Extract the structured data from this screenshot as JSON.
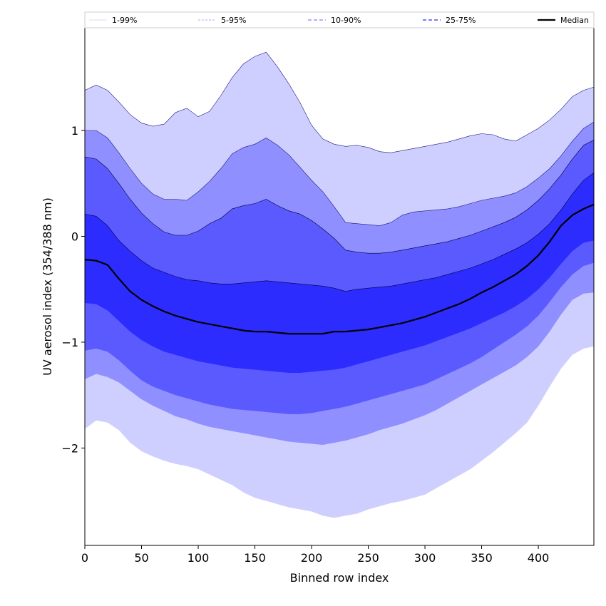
{
  "chart_data": {
    "type": "area",
    "xlabel": "Binned row index",
    "ylabel": "UV aerosol index (354/388 nm)",
    "xlim": [
      0,
      449
    ],
    "ylim": [
      -2.92,
      1.97
    ],
    "xticks": [
      0,
      50,
      100,
      150,
      200,
      250,
      300,
      350,
      400
    ],
    "yticks": [
      -2,
      -1,
      0,
      1
    ],
    "ytick_labels": [
      "−2",
      "−1",
      "0",
      "1"
    ],
    "legend_position": "top, horizontal strip",
    "x": [
      0,
      10,
      20,
      30,
      40,
      50,
      60,
      70,
      80,
      90,
      100,
      110,
      120,
      130,
      140,
      150,
      160,
      170,
      180,
      190,
      200,
      210,
      220,
      230,
      240,
      250,
      260,
      270,
      280,
      290,
      300,
      310,
      320,
      330,
      340,
      350,
      360,
      370,
      380,
      390,
      400,
      410,
      420,
      430,
      440,
      449
    ],
    "series": [
      {
        "name": "1-99%",
        "color": "#cfcfff",
        "lower": [
          -1.82,
          -1.74,
          -1.76,
          -1.83,
          -1.95,
          -2.03,
          -2.08,
          -2.12,
          -2.15,
          -2.17,
          -2.2,
          -2.25,
          -2.3,
          -2.35,
          -2.42,
          -2.47,
          -2.5,
          -2.53,
          -2.56,
          -2.58,
          -2.6,
          -2.64,
          -2.66,
          -2.64,
          -2.62,
          -2.58,
          -2.55,
          -2.52,
          -2.5,
          -2.47,
          -2.44,
          -2.38,
          -2.32,
          -2.26,
          -2.2,
          -2.12,
          -2.04,
          -1.95,
          -1.86,
          -1.76,
          -1.6,
          -1.42,
          -1.25,
          -1.12,
          -1.06,
          -1.04
        ],
        "upper": [
          1.38,
          1.43,
          1.38,
          1.27,
          1.15,
          1.07,
          1.04,
          1.06,
          1.17,
          1.21,
          1.13,
          1.18,
          1.33,
          1.5,
          1.63,
          1.7,
          1.74,
          1.6,
          1.44,
          1.26,
          1.05,
          0.92,
          0.87,
          0.85,
          0.86,
          0.84,
          0.8,
          0.79,
          0.81,
          0.83,
          0.85,
          0.87,
          0.89,
          0.92,
          0.95,
          0.97,
          0.96,
          0.92,
          0.9,
          0.96,
          1.02,
          1.1,
          1.2,
          1.32,
          1.38,
          1.41
        ]
      },
      {
        "name": "5-95%",
        "color": "#8f8fff",
        "lower": [
          -1.35,
          -1.3,
          -1.33,
          -1.38,
          -1.46,
          -1.54,
          -1.6,
          -1.65,
          -1.7,
          -1.73,
          -1.77,
          -1.8,
          -1.82,
          -1.84,
          -1.86,
          -1.88,
          -1.9,
          -1.92,
          -1.94,
          -1.95,
          -1.96,
          -1.97,
          -1.95,
          -1.93,
          -1.9,
          -1.87,
          -1.83,
          -1.8,
          -1.77,
          -1.73,
          -1.69,
          -1.64,
          -1.58,
          -1.52,
          -1.46,
          -1.4,
          -1.34,
          -1.28,
          -1.22,
          -1.14,
          -1.04,
          -0.9,
          -0.74,
          -0.6,
          -0.54,
          -0.53
        ],
        "upper": [
          1.0,
          1.0,
          0.93,
          0.79,
          0.64,
          0.5,
          0.4,
          0.35,
          0.35,
          0.34,
          0.42,
          0.52,
          0.64,
          0.78,
          0.84,
          0.87,
          0.93,
          0.86,
          0.77,
          0.65,
          0.53,
          0.42,
          0.28,
          0.13,
          0.12,
          0.11,
          0.1,
          0.13,
          0.2,
          0.23,
          0.24,
          0.25,
          0.26,
          0.28,
          0.31,
          0.34,
          0.36,
          0.38,
          0.41,
          0.47,
          0.55,
          0.64,
          0.76,
          0.9,
          1.02,
          1.08
        ]
      },
      {
        "name": "10-90%",
        "color": "#5a5aff",
        "lower": [
          -1.08,
          -1.06,
          -1.09,
          -1.17,
          -1.27,
          -1.36,
          -1.42,
          -1.46,
          -1.5,
          -1.53,
          -1.56,
          -1.59,
          -1.61,
          -1.63,
          -1.64,
          -1.65,
          -1.66,
          -1.67,
          -1.68,
          -1.68,
          -1.67,
          -1.65,
          -1.63,
          -1.61,
          -1.58,
          -1.55,
          -1.52,
          -1.49,
          -1.46,
          -1.43,
          -1.4,
          -1.35,
          -1.3,
          -1.25,
          -1.2,
          -1.14,
          -1.07,
          -1.0,
          -0.93,
          -0.85,
          -0.75,
          -0.62,
          -0.48,
          -0.36,
          -0.28,
          -0.25
        ],
        "upper": [
          0.75,
          0.73,
          0.64,
          0.5,
          0.35,
          0.22,
          0.12,
          0.04,
          0.01,
          0.01,
          0.05,
          0.12,
          0.17,
          0.26,
          0.29,
          0.31,
          0.35,
          0.29,
          0.24,
          0.21,
          0.15,
          0.07,
          -0.02,
          -0.13,
          -0.15,
          -0.16,
          -0.16,
          -0.15,
          -0.13,
          -0.11,
          -0.09,
          -0.07,
          -0.05,
          -0.02,
          0.01,
          0.05,
          0.09,
          0.13,
          0.18,
          0.25,
          0.34,
          0.45,
          0.58,
          0.73,
          0.86,
          0.91
        ]
      },
      {
        "name": "25-75%",
        "color": "#2c2cff",
        "lower": [
          -0.63,
          -0.64,
          -0.7,
          -0.8,
          -0.9,
          -0.98,
          -1.04,
          -1.09,
          -1.12,
          -1.15,
          -1.18,
          -1.2,
          -1.22,
          -1.24,
          -1.25,
          -1.26,
          -1.27,
          -1.28,
          -1.29,
          -1.29,
          -1.28,
          -1.27,
          -1.26,
          -1.24,
          -1.21,
          -1.18,
          -1.15,
          -1.12,
          -1.09,
          -1.06,
          -1.03,
          -0.99,
          -0.95,
          -0.91,
          -0.87,
          -0.82,
          -0.77,
          -0.72,
          -0.66,
          -0.59,
          -0.5,
          -0.39,
          -0.26,
          -0.14,
          -0.06,
          -0.04
        ],
        "upper": [
          0.21,
          0.19,
          0.1,
          -0.04,
          -0.14,
          -0.23,
          -0.3,
          -0.34,
          -0.38,
          -0.41,
          -0.42,
          -0.44,
          -0.45,
          -0.45,
          -0.44,
          -0.43,
          -0.42,
          -0.43,
          -0.44,
          -0.45,
          -0.46,
          -0.47,
          -0.49,
          -0.52,
          -0.5,
          -0.49,
          -0.48,
          -0.47,
          -0.45,
          -0.43,
          -0.41,
          -0.39,
          -0.36,
          -0.33,
          -0.3,
          -0.26,
          -0.22,
          -0.17,
          -0.12,
          -0.06,
          0.02,
          0.12,
          0.25,
          0.4,
          0.53,
          0.6
        ]
      },
      {
        "name": "Median",
        "color": "#000000",
        "values": [
          -0.22,
          -0.23,
          -0.27,
          -0.4,
          -0.52,
          -0.6,
          -0.66,
          -0.71,
          -0.75,
          -0.78,
          -0.81,
          -0.83,
          -0.85,
          -0.87,
          -0.89,
          -0.9,
          -0.9,
          -0.91,
          -0.92,
          -0.92,
          -0.92,
          -0.92,
          -0.9,
          -0.9,
          -0.89,
          -0.88,
          -0.86,
          -0.84,
          -0.82,
          -0.79,
          -0.76,
          -0.72,
          -0.68,
          -0.64,
          -0.59,
          -0.53,
          -0.48,
          -0.42,
          -0.36,
          -0.28,
          -0.18,
          -0.05,
          0.1,
          0.2,
          0.26,
          0.3
        ]
      }
    ]
  }
}
